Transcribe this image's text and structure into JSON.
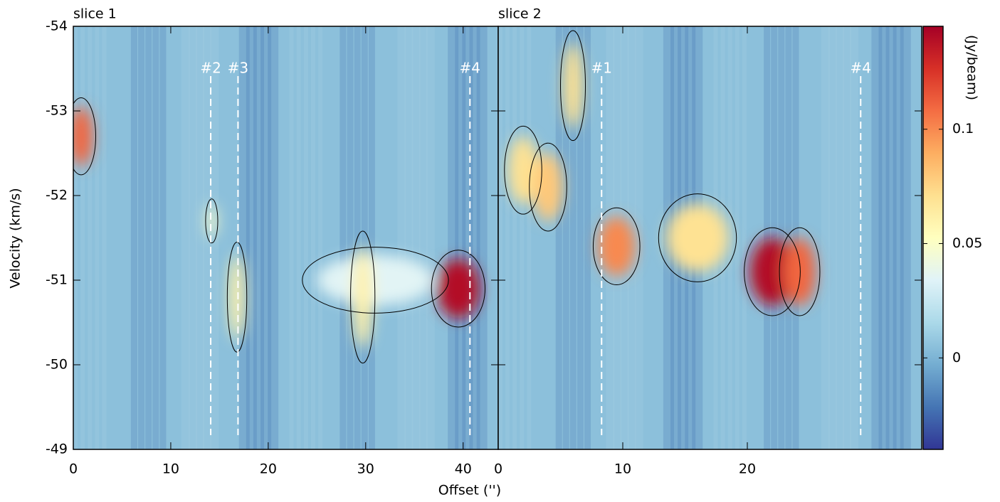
{
  "chart_data": [
    {
      "type": "pv",
      "title": "slice 1",
      "xlabel": "Offset ('')",
      "ylabel": "Velocity (km/s)",
      "xlim": [
        0,
        43.6
      ],
      "xticks": [
        0,
        10,
        20,
        30,
        40
      ],
      "ylim": [
        -54,
        -49
      ],
      "yticks": [
        -54,
        -53,
        -52,
        -51,
        -50,
        -49
      ],
      "markers": [
        {
          "label": "#2",
          "x": 14.1
        },
        {
          "label": "#3",
          "x": 16.9
        },
        {
          "label": "#4",
          "x": 40.7
        }
      ],
      "features": [
        {
          "x": 0.8,
          "y": -52.7,
          "peak": 0.11,
          "dx": 1.2,
          "dy": 0.35
        },
        {
          "x": 14.2,
          "y": -51.7,
          "peak": 0.05,
          "dx": 0.5,
          "dy": 0.2
        },
        {
          "x": 16.8,
          "y": -50.8,
          "peak": 0.06,
          "dx": 0.8,
          "dy": 0.5
        },
        {
          "x": 31,
          "y": -51,
          "peak": 0.035,
          "dx": 6,
          "dy": 0.3
        },
        {
          "x": 29.7,
          "y": -50.8,
          "peak": 0.06,
          "dx": 1,
          "dy": 0.6
        },
        {
          "x": 39.5,
          "y": -50.9,
          "peak": 0.14,
          "dx": 2.2,
          "dy": 0.35
        }
      ]
    },
    {
      "type": "pv",
      "title": "slice 2",
      "xlim": [
        0,
        34
      ],
      "xticks": [
        0,
        10,
        20
      ],
      "markers": [
        {
          "label": "#1",
          "x": 8.3
        },
        {
          "label": "#4",
          "x": 29.1
        }
      ],
      "features": [
        {
          "x": 6,
          "y": -53.3,
          "peak": 0.07,
          "dx": 0.8,
          "dy": 0.5
        },
        {
          "x": 2,
          "y": -52.3,
          "peak": 0.07,
          "dx": 1.2,
          "dy": 0.4
        },
        {
          "x": 4,
          "y": -52.1,
          "peak": 0.08,
          "dx": 1.2,
          "dy": 0.4
        },
        {
          "x": 9.5,
          "y": -51.4,
          "peak": 0.1,
          "dx": 1.5,
          "dy": 0.35
        },
        {
          "x": 16,
          "y": -51.5,
          "peak": 0.07,
          "dx": 2.5,
          "dy": 0.4
        },
        {
          "x": 22,
          "y": -51.1,
          "peak": 0.14,
          "dx": 1.8,
          "dy": 0.4
        },
        {
          "x": 24.2,
          "y": -51.1,
          "peak": 0.11,
          "dx": 1.3,
          "dy": 0.4
        }
      ]
    },
    {
      "type": "colorbar",
      "label": "(Jy/beam)",
      "lim": [
        -0.04,
        0.145
      ],
      "ticks": [
        0,
        0.05,
        0.1
      ],
      "background": 0.005,
      "colormap": [
        "#313695",
        "#4575b4",
        "#74add1",
        "#abd9e9",
        "#e0f3f8",
        "#ffffbf",
        "#fee090",
        "#fdae61",
        "#f46d43",
        "#d73027",
        "#a50026"
      ]
    }
  ]
}
